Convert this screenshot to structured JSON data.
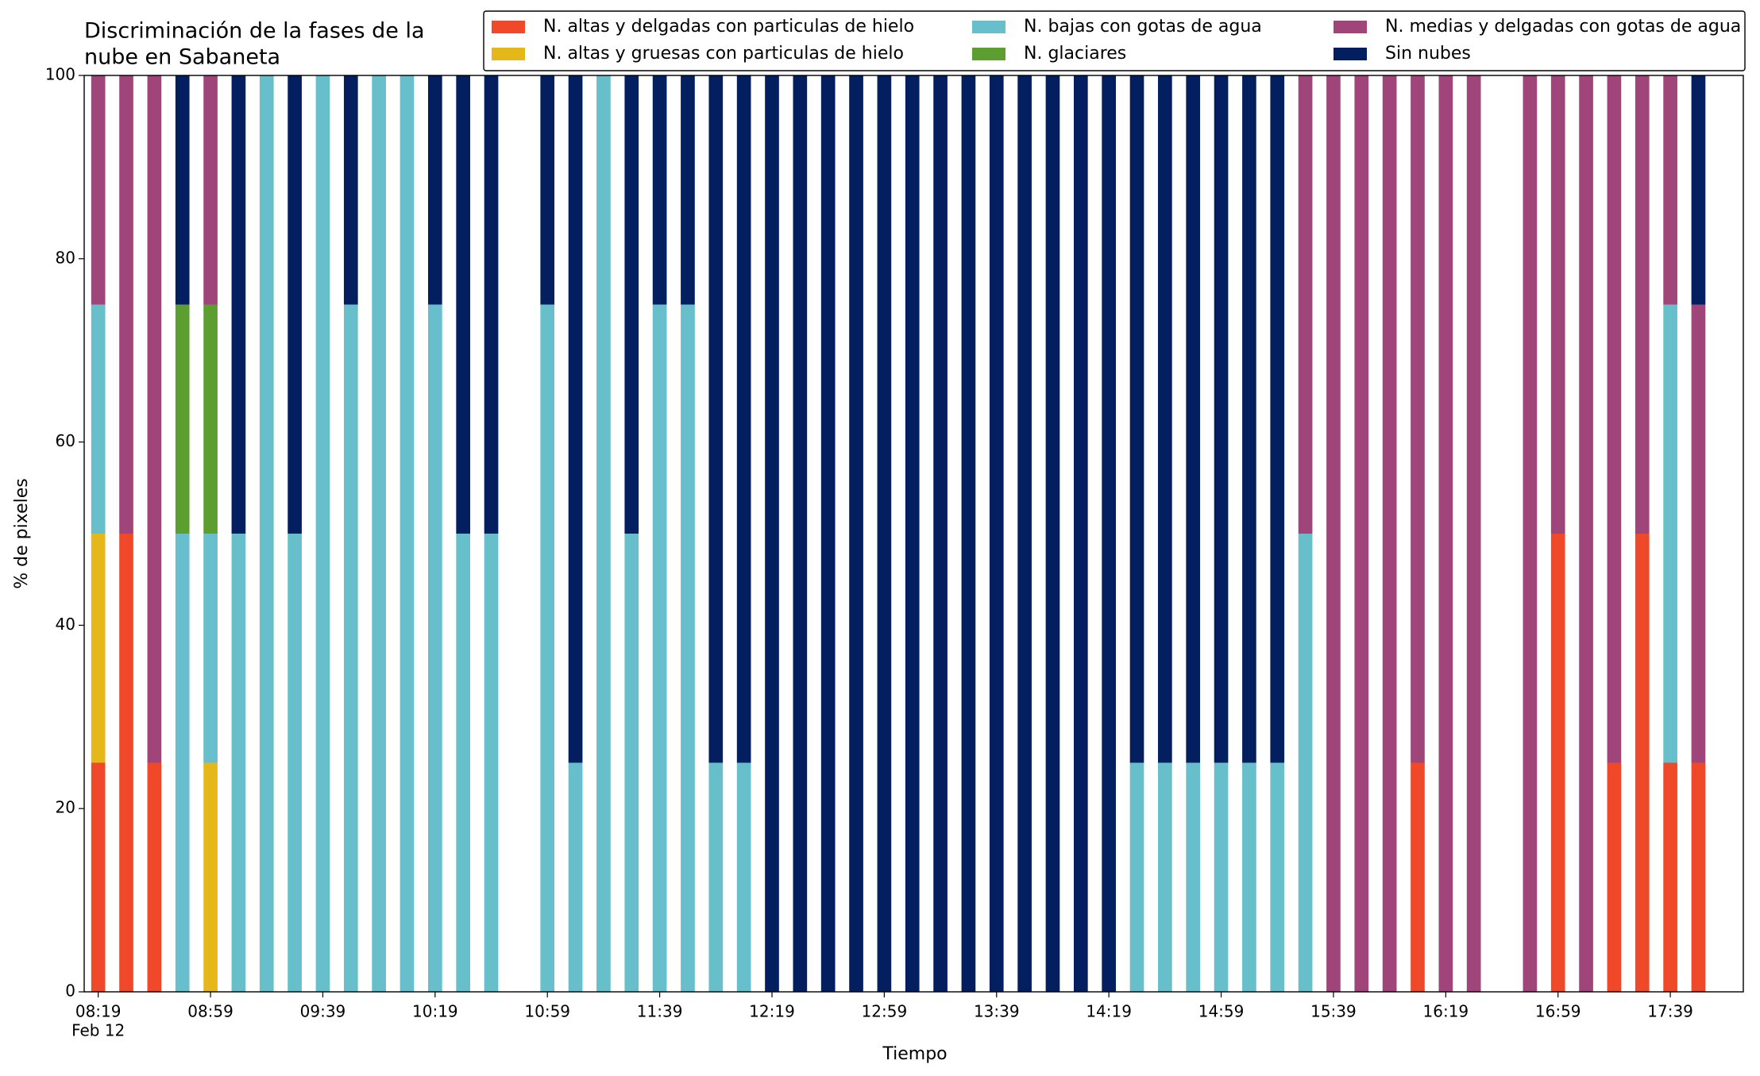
{
  "chart_data": {
    "type": "stacked_bar",
    "title": [
      "Discriminación de la fases de la",
      "nube en Sabaneta"
    ],
    "xlabel": "Tiempo",
    "ylabel": "% de pixeles",
    "xdate": "Feb 12",
    "x": [
      "08:19",
      "08:29",
      "08:39",
      "08:49",
      "08:59",
      "09:09",
      "09:19",
      "09:29",
      "09:39",
      "09:49",
      "09:59",
      "10:09",
      "10:19",
      "10:29",
      "10:39",
      "10:59",
      "11:09",
      "11:19",
      "11:29",
      "11:39",
      "11:49",
      "11:59",
      "12:09",
      "12:19",
      "12:29",
      "12:39",
      "12:49",
      "12:59",
      "13:09",
      "13:19",
      "13:29",
      "13:39",
      "13:49",
      "13:59",
      "14:09",
      "14:19",
      "14:29",
      "14:39",
      "14:49",
      "14:59",
      "15:09",
      "15:19",
      "15:29",
      "15:39",
      "15:49",
      "15:59",
      "16:09",
      "16:19",
      "16:29",
      "16:49",
      "16:59",
      "17:09",
      "17:19",
      "17:29",
      "17:39",
      "17:49"
    ],
    "series": [
      {
        "name": "N. altas y delgadas con particulas de hielo",
        "color": "#f0492a",
        "values": [
          25,
          50,
          25,
          0,
          0,
          0,
          0,
          0,
          0,
          0,
          0,
          0,
          0,
          0,
          0,
          0,
          0,
          0,
          0,
          0,
          0,
          0,
          0,
          0,
          0,
          0,
          0,
          0,
          0,
          0,
          0,
          0,
          0,
          0,
          0,
          0,
          0,
          0,
          0,
          0,
          0,
          0,
          0,
          0,
          0,
          0,
          25,
          0,
          0,
          0,
          50,
          0,
          25,
          50,
          25,
          25
        ]
      },
      {
        "name": "N. altas y gruesas con particulas de hielo",
        "color": "#e5b719",
        "values": [
          25,
          0,
          0,
          0,
          25,
          0,
          0,
          0,
          0,
          0,
          0,
          0,
          0,
          0,
          0,
          0,
          0,
          0,
          0,
          0,
          0,
          0,
          0,
          0,
          0,
          0,
          0,
          0,
          0,
          0,
          0,
          0,
          0,
          0,
          0,
          0,
          0,
          0,
          0,
          0,
          0,
          0,
          0,
          0,
          0,
          0,
          0,
          0,
          0,
          0,
          0,
          0,
          0,
          0,
          0,
          0
        ]
      },
      {
        "name": "N. bajas con gotas de agua",
        "color": "#66bfca",
        "values": [
          25,
          0,
          0,
          50,
          25,
          50,
          100,
          50,
          100,
          75,
          100,
          100,
          75,
          50,
          50,
          75,
          25,
          100,
          50,
          75,
          75,
          25,
          25,
          0,
          0,
          0,
          0,
          0,
          0,
          0,
          0,
          0,
          0,
          0,
          0,
          0,
          25,
          25,
          25,
          25,
          25,
          25,
          50,
          0,
          0,
          0,
          0,
          0,
          0,
          0,
          0,
          0,
          0,
          0,
          50,
          0
        ]
      },
      {
        "name": "N. glaciares",
        "color": "#5c9e2f",
        "values": [
          0,
          0,
          0,
          25,
          25,
          0,
          0,
          0,
          0,
          0,
          0,
          0,
          0,
          0,
          0,
          0,
          0,
          0,
          0,
          0,
          0,
          0,
          0,
          0,
          0,
          0,
          0,
          0,
          0,
          0,
          0,
          0,
          0,
          0,
          0,
          0,
          0,
          0,
          0,
          0,
          0,
          0,
          0,
          0,
          0,
          0,
          0,
          0,
          0,
          0,
          0,
          0,
          0,
          0,
          0,
          0
        ]
      },
      {
        "name": "N. medias y delgadas con gotas de agua",
        "color": "#a0457a",
        "values": [
          25,
          50,
          75,
          0,
          25,
          0,
          0,
          0,
          0,
          0,
          0,
          0,
          0,
          0,
          0,
          0,
          0,
          0,
          0,
          0,
          0,
          0,
          0,
          0,
          0,
          0,
          0,
          0,
          0,
          0,
          0,
          0,
          0,
          0,
          0,
          0,
          0,
          0,
          0,
          0,
          0,
          0,
          50,
          100,
          100,
          100,
          75,
          100,
          100,
          100,
          50,
          100,
          75,
          50,
          25,
          50
        ]
      },
      {
        "name": "Sin nubes",
        "color": "#031f5f",
        "values": [
          0,
          0,
          0,
          25,
          0,
          50,
          0,
          50,
          0,
          25,
          0,
          0,
          25,
          50,
          50,
          25,
          75,
          0,
          50,
          25,
          25,
          75,
          75,
          100,
          100,
          100,
          100,
          100,
          100,
          100,
          100,
          100,
          100,
          100,
          100,
          100,
          75,
          75,
          75,
          75,
          75,
          75,
          0,
          0,
          0,
          0,
          0,
          0,
          0,
          0,
          0,
          0,
          0,
          0,
          0,
          25
        ]
      }
    ],
    "xlim": [
      "08:14",
      "18:05"
    ],
    "xticks": [
      "08:19",
      "08:59",
      "09:39",
      "10:19",
      "10:59",
      "11:39",
      "12:19",
      "12:59",
      "13:39",
      "14:19",
      "14:59",
      "15:39",
      "16:19",
      "16:59",
      "17:39"
    ],
    "ylim": [
      0,
      100
    ],
    "yticks": [
      0,
      20,
      40,
      60,
      80,
      100
    ]
  }
}
